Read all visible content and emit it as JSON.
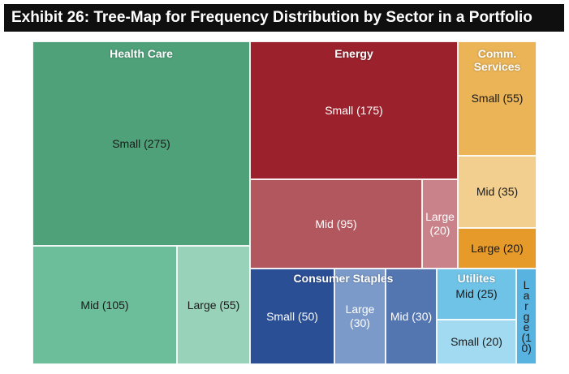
{
  "title": "Exhibit 26: Tree-Map for Frequency Distribution by Sector in a Portfolio",
  "chart_data": {
    "type": "treemap",
    "title": "Exhibit 26: Tree-Map for Frequency Distribution by Sector in a Portfolio",
    "sectors": [
      {
        "name": "Health Care",
        "total": 435,
        "cells": [
          {
            "label": "Small (275)",
            "size": "Small",
            "value": 275,
            "color": "#4fa17a",
            "text_color": "#1a1a1a"
          },
          {
            "label": "Mid (105)",
            "size": "Mid",
            "value": 105,
            "color": "#6cbd9a",
            "text_color": "#1a1a1a"
          },
          {
            "label": "Large (55)",
            "size": "Large",
            "value": 55,
            "color": "#98d2b9",
            "text_color": "#1a1a1a"
          }
        ]
      },
      {
        "name": "Energy",
        "total": 290,
        "cells": [
          {
            "label": "Small (175)",
            "size": "Small",
            "value": 175,
            "color": "#9b222d",
            "text_color": "#ffffff"
          },
          {
            "label": "Mid (95)",
            "size": "Mid",
            "value": 95,
            "color": "#b3575f",
            "text_color": "#ffffff"
          },
          {
            "label": "Large (20)",
            "size": "Large",
            "value": 20,
            "color": "#c9828a",
            "text_color": "#ffffff"
          }
        ]
      },
      {
        "name": "Comm. Services",
        "total": 110,
        "cells": [
          {
            "label": "Small (55)",
            "size": "Small",
            "value": 55,
            "color": "#eab457",
            "text_color": "#1a1a1a"
          },
          {
            "label": "Mid (35)",
            "size": "Mid",
            "value": 35,
            "color": "#f2cf8e",
            "text_color": "#1a1a1a"
          },
          {
            "label": "Large (20)",
            "size": "Large",
            "value": 20,
            "color": "#e69a2a",
            "text_color": "#1a1a1a"
          }
        ]
      },
      {
        "name": "Consumer Staples",
        "total": 110,
        "cells": [
          {
            "label": "Small (50)",
            "size": "Small",
            "value": 50,
            "color": "#2b4f94",
            "text_color": "#ffffff"
          },
          {
            "label": "Large (30)",
            "size": "Large",
            "value": 30,
            "color": "#7b9ac9",
            "text_color": "#ffffff"
          },
          {
            "label": "Mid (30)",
            "size": "Mid",
            "value": 30,
            "color": "#5375b0",
            "text_color": "#ffffff"
          }
        ]
      },
      {
        "name": "Utilites",
        "total": 55,
        "cells": [
          {
            "label": "Mid (25)",
            "size": "Mid",
            "value": 25,
            "color": "#6fc3e7",
            "text_color": "#1a1a1a"
          },
          {
            "label": "Small (20)",
            "size": "Small",
            "value": 20,
            "color": "#a2dbf1",
            "text_color": "#1a1a1a"
          },
          {
            "label": "Large (10)",
            "size": "Large",
            "value": 10,
            "color": "#58b3e1",
            "text_color": "#1a1a1a"
          }
        ]
      }
    ]
  }
}
